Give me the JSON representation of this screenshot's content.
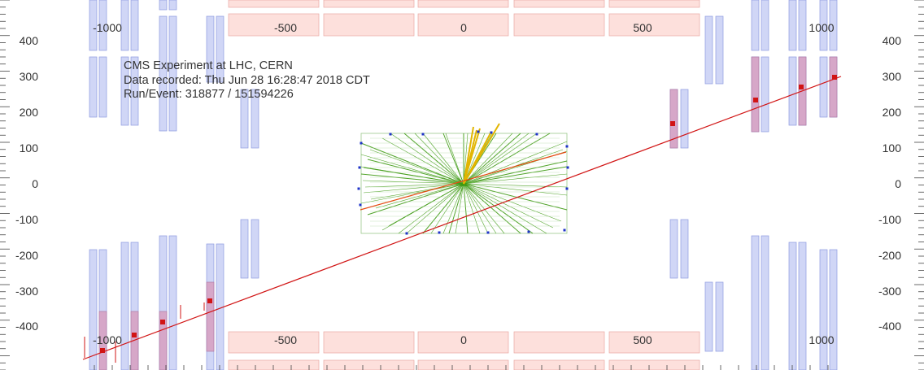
{
  "event_info": {
    "line1": "CMS Experiment at LHC, CERN",
    "line2": "Data recorded: Thu Jun 28 16:28:47 2018 CDT",
    "line3": "Run/Event: 318877 / 151594226"
  },
  "z_axis_labels": [
    "-1000",
    "-500",
    "0",
    "500",
    "1000"
  ],
  "y_axis_labels": [
    "400",
    "300",
    "200",
    "100",
    "0",
    "-100",
    "-200",
    "-300",
    "-400"
  ],
  "colors": {
    "muon_chamber": "#d0d6f6",
    "muon_chamber_edge": "#8e9ae0",
    "hit_chamber": "#d6a7c8",
    "calorimeter": "#fde0dc",
    "calorimeter_edge": "#e9a7a1",
    "muon_track": "#d11414",
    "tracker_track": "#3e9a12",
    "jet": "#e2b500",
    "ecal_hit": "#1f33c8"
  }
}
